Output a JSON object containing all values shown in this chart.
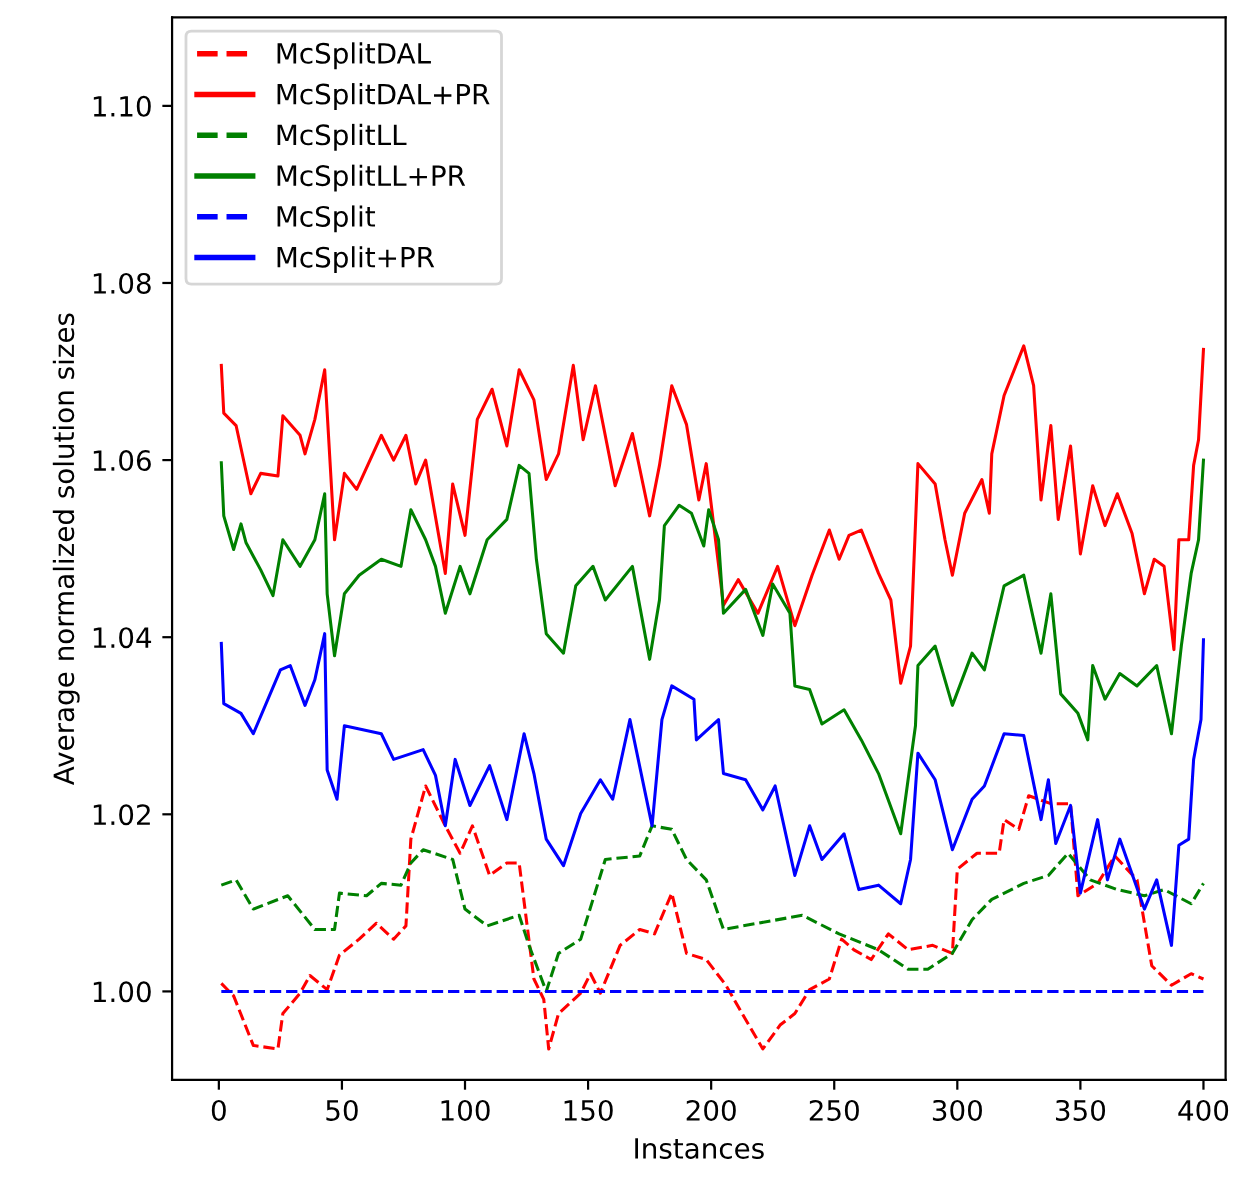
{
  "chart_data": {
    "type": "line",
    "xlabel": "Instances",
    "ylabel": "Average normalized solution sizes",
    "xlim": [
      -19,
      409
    ],
    "ylim": [
      0.99,
      1.11
    ],
    "xticks": [
      0,
      50,
      100,
      150,
      200,
      250,
      300,
      350,
      400
    ],
    "yticks": [
      {
        "value": 1.0,
        "label": "1.00"
      },
      {
        "value": 1.02,
        "label": "1.02"
      },
      {
        "value": 1.04,
        "label": "1.04"
      },
      {
        "value": 1.06,
        "label": "1.06"
      },
      {
        "value": 1.08,
        "label": "1.08"
      },
      {
        "value": 1.1,
        "label": "1.10"
      }
    ],
    "grid": false,
    "legend": "top left",
    "marker": "none",
    "series": [
      {
        "name": "McSplitDAL",
        "color": "#ff0000",
        "line_style": "dashed",
        "x": [
          1,
          6,
          14,
          24,
          26,
          33,
          37,
          44,
          49,
          57,
          64,
          71,
          76,
          78,
          84,
          92,
          98,
          103,
          110,
          117,
          122,
          128,
          132,
          134,
          138,
          147,
          151,
          155,
          163,
          171,
          177,
          184,
          190,
          198,
          206,
          213,
          221,
          228,
          234,
          240,
          248,
          253,
          258,
          265,
          272,
          280,
          290,
          298,
          300,
          308,
          317,
          319,
          325,
          329,
          338,
          346,
          349,
          357,
          364,
          373,
          379,
          387,
          395,
          400
        ],
        "values": [
          1.0009,
          0.9995,
          0.9939,
          0.9935,
          0.9975,
          0.9998,
          1.0018,
          1.0002,
          1.0041,
          1.0059,
          1.0077,
          1.0059,
          1.0074,
          1.0172,
          1.0232,
          1.0187,
          1.0156,
          1.0187,
          1.0131,
          1.0145,
          1.0145,
          1.0014,
          0.9991,
          0.9935,
          0.9975,
          0.9998,
          1.002,
          0.9998,
          1.0052,
          1.007,
          1.0065,
          1.0111,
          1.0043,
          1.0036,
          1.0007,
          0.9973,
          0.9935,
          0.9962,
          0.9975,
          1.0002,
          1.0014,
          1.0059,
          1.0047,
          1.0036,
          1.0065,
          1.0047,
          1.0052,
          1.0043,
          1.0138,
          1.0156,
          1.0156,
          1.0194,
          1.0183,
          1.0221,
          1.0212,
          1.0212,
          1.0108,
          1.0122,
          1.0153,
          1.0126,
          1.0029,
          1.0007,
          1.002,
          1.0014
        ]
      },
      {
        "name": "McSplitDAL+PR",
        "color": "#ff0000",
        "line_style": "solid",
        "x": [
          1,
          2,
          7,
          13,
          17,
          24,
          26,
          33,
          35,
          39,
          43,
          47,
          51,
          56,
          66,
          71,
          76,
          80,
          84,
          92,
          95,
          100,
          105,
          111,
          117,
          122,
          128,
          133,
          138,
          144,
          148,
          153,
          161,
          168,
          175,
          179,
          184,
          190,
          195,
          198,
          205,
          211,
          219,
          227,
          234,
          241,
          248,
          252,
          256,
          261,
          268,
          273,
          277,
          281,
          284,
          291,
          295,
          298,
          303,
          310,
          313,
          314,
          319,
          327,
          331,
          334,
          338,
          341,
          346,
          350,
          355,
          360,
          365,
          371,
          376,
          380,
          384,
          388,
          390,
          394,
          396,
          398,
          400
        ],
        "values": [
          1.0707,
          1.0653,
          1.0639,
          1.0562,
          1.0585,
          1.0582,
          1.065,
          1.0628,
          1.0607,
          1.0646,
          1.0702,
          1.051,
          1.0585,
          1.0567,
          1.0628,
          1.06,
          1.0628,
          1.0573,
          1.06,
          1.0472,
          1.0573,
          1.0515,
          1.0646,
          1.068,
          1.0616,
          1.0702,
          1.0668,
          1.0578,
          1.0607,
          1.0707,
          1.0623,
          1.0684,
          1.0571,
          1.063,
          1.0537,
          1.0594,
          1.0684,
          1.064,
          1.0555,
          1.0596,
          1.0436,
          1.0465,
          1.0427,
          1.048,
          1.0413,
          1.047,
          1.0521,
          1.0488,
          1.0515,
          1.0521,
          1.0472,
          1.0442,
          1.0348,
          1.039,
          1.0596,
          1.0573,
          1.051,
          1.047,
          1.054,
          1.0578,
          1.054,
          1.0607,
          1.0673,
          1.0729,
          1.0684,
          1.0555,
          1.0639,
          1.0533,
          1.0616,
          1.0494,
          1.0571,
          1.0526,
          1.0562,
          1.0517,
          1.0449,
          1.0488,
          1.048,
          1.0386,
          1.051,
          1.051,
          1.0594,
          1.0623,
          1.0725
        ]
      },
      {
        "name": "McSplitLL",
        "color": "#008000",
        "line_style": "dashed",
        "x": [
          1,
          7,
          14,
          28,
          39,
          47,
          49,
          60,
          66,
          74,
          78,
          83,
          95,
          100,
          109,
          122,
          126,
          133,
          138,
          147,
          157,
          171,
          176,
          184,
          190,
          198,
          205,
          219,
          237,
          252,
          268,
          280,
          288,
          298,
          306,
          314,
          327,
          337,
          345,
          354,
          365,
          376,
          384,
          395,
          400
        ],
        "values": [
          1.012,
          1.0126,
          1.0093,
          1.0108,
          1.007,
          1.007,
          1.0111,
          1.0108,
          1.0122,
          1.012,
          1.0145,
          1.016,
          1.0149,
          1.0093,
          1.0074,
          1.0086,
          1.0052,
          1.0,
          1.0043,
          1.0059,
          1.0149,
          1.0153,
          1.0187,
          1.0183,
          1.0149,
          1.0126,
          1.007,
          1.0077,
          1.0086,
          1.0065,
          1.0047,
          1.0025,
          1.0025,
          1.0043,
          1.0081,
          1.0104,
          1.0122,
          1.0131,
          1.0156,
          1.0126,
          1.0115,
          1.0108,
          1.0115,
          1.0099,
          1.0122
        ]
      },
      {
        "name": "McSplitLL+PR",
        "color": "#008000",
        "line_style": "solid",
        "x": [
          1,
          2,
          6,
          9,
          11,
          17,
          22,
          26,
          33,
          39,
          43,
          44,
          47,
          51,
          57,
          66,
          74,
          78,
          84,
          88,
          92,
          98,
          102,
          109,
          117,
          122,
          126,
          129,
          133,
          140,
          145,
          152,
          157,
          168,
          175,
          179,
          181,
          187,
          192,
          197,
          199,
          203,
          205,
          214,
          221,
          225,
          232,
          234,
          240,
          245,
          254,
          261,
          268,
          277,
          283,
          284,
          291,
          298,
          306,
          311,
          319,
          327,
          334,
          338,
          342,
          349,
          353,
          355,
          360,
          366,
          373,
          381,
          387,
          391,
          395,
          398,
          400
        ],
        "values": [
          1.0597,
          1.0537,
          1.0499,
          1.0528,
          1.0507,
          1.0476,
          1.0447,
          1.051,
          1.048,
          1.051,
          1.0562,
          1.0449,
          1.0379,
          1.0449,
          1.047,
          1.0488,
          1.048,
          1.0544,
          1.051,
          1.048,
          1.0427,
          1.048,
          1.0449,
          1.051,
          1.0533,
          1.0594,
          1.0585,
          1.0488,
          1.0404,
          1.0382,
          1.0458,
          1.048,
          1.0442,
          1.048,
          1.0375,
          1.0442,
          1.0526,
          1.0549,
          1.054,
          1.0503,
          1.0544,
          1.051,
          1.0427,
          1.0454,
          1.0402,
          1.046,
          1.0427,
          1.0345,
          1.0341,
          1.0302,
          1.0318,
          1.0284,
          1.0246,
          1.0178,
          1.03,
          1.0368,
          1.039,
          1.0323,
          1.0382,
          1.0363,
          1.0458,
          1.047,
          1.0382,
          1.0449,
          1.0336,
          1.0314,
          1.0284,
          1.0368,
          1.033,
          1.0359,
          1.0345,
          1.0368,
          1.0291,
          1.039,
          1.0472,
          1.051,
          1.06
        ]
      },
      {
        "name": "McSplit",
        "color": "#0000ff",
        "line_style": "dashed",
        "x": [
          1,
          400
        ],
        "values": [
          1.0,
          1.0
        ]
      },
      {
        "name": "McSplit+PR",
        "color": "#0000ff",
        "line_style": "solid",
        "x": [
          1,
          2,
          9,
          14,
          25,
          29,
          35,
          39,
          43,
          44,
          48,
          51,
          66,
          71,
          83,
          88,
          92,
          96,
          102,
          110,
          117,
          124,
          128,
          133,
          140,
          147,
          155,
          160,
          167,
          176,
          180,
          184,
          193,
          194,
          203,
          205,
          214,
          221,
          226,
          234,
          240,
          245,
          254,
          260,
          268,
          277,
          281,
          284,
          291,
          298,
          306,
          311,
          319,
          327,
          334,
          337,
          340,
          346,
          350,
          357,
          361,
          366,
          376,
          381,
          387,
          390,
          394,
          396,
          399,
          400
        ],
        "values": [
          1.0393,
          1.0325,
          1.0314,
          1.0291,
          1.0363,
          1.0368,
          1.0323,
          1.0352,
          1.0404,
          1.025,
          1.0217,
          1.03,
          1.0291,
          1.0262,
          1.0273,
          1.0244,
          1.0187,
          1.0262,
          1.021,
          1.0255,
          1.0194,
          1.0291,
          1.0246,
          1.0172,
          1.0142,
          1.0201,
          1.0239,
          1.0217,
          1.0307,
          1.0187,
          1.0307,
          1.0345,
          1.033,
          1.0284,
          1.0307,
          1.0246,
          1.0239,
          1.0205,
          1.0232,
          1.0131,
          1.0187,
          1.0149,
          1.0178,
          1.0115,
          1.012,
          1.0099,
          1.0149,
          1.0269,
          1.0239,
          1.016,
          1.0217,
          1.0232,
          1.0291,
          1.0289,
          1.0194,
          1.0239,
          1.0167,
          1.021,
          1.0111,
          1.0194,
          1.0126,
          1.0172,
          1.0093,
          1.0126,
          1.0052,
          1.0165,
          1.0172,
          1.0262,
          1.0307,
          1.0397
        ]
      }
    ]
  }
}
